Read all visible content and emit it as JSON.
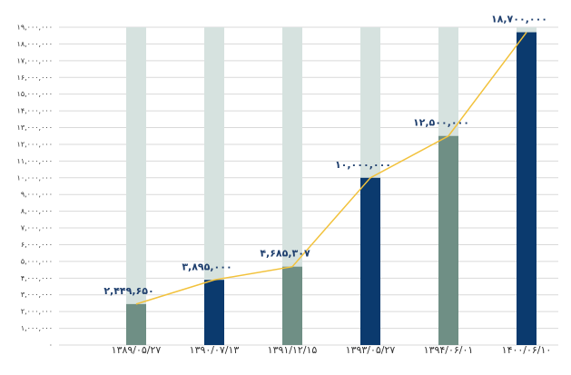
{
  "chart_data": {
    "type": "bar",
    "categories": [
      "۱۳۸۹/۰۵/۲۷",
      "۱۳۹۰/۰۷/۱۳",
      "۱۳۹۱/۱۲/۱۵",
      "۱۳۹۳/۰۵/۲۷",
      "۱۳۹۴/۰۶/۰۱",
      "۱۴۰۰/۰۶/۱۰"
    ],
    "values": [
      2449650,
      3895000,
      4685307,
      10000000,
      12500000,
      18700000
    ],
    "value_labels": [
      "۲,۴۴۹,۶۵۰",
      "۳,۸۹۵,۰۰۰",
      "۴,۶۸۵,۳۰۷",
      "۱۰,۰۰۰,۰۰۰",
      "۱۲,۵۰۰,۰۰۰",
      "۱۸,۷۰۰,۰۰۰"
    ],
    "colors": [
      "#6f8f85",
      "#0b3a6e",
      "#6f8f85",
      "#0b3a6e",
      "#6f8f85",
      "#0b3a6e"
    ],
    "background_color": "#d6e2df",
    "line_color": "#f2c23c",
    "ylim": [
      0,
      19000000
    ],
    "yticks": [
      {
        "value": 0,
        "label": "۰"
      },
      {
        "value": 1000000,
        "label": "۱,۰۰۰,۰۰۰"
      },
      {
        "value": 2000000,
        "label": "۲,۰۰۰,۰۰۰"
      },
      {
        "value": 3000000,
        "label": "۳,۰۰۰,۰۰۰"
      },
      {
        "value": 4000000,
        "label": "۴,۰۰۰,۰۰۰"
      },
      {
        "value": 5000000,
        "label": "۵,۰۰۰,۰۰۰"
      },
      {
        "value": 6000000,
        "label": "۶,۰۰۰,۰۰۰"
      },
      {
        "value": 7000000,
        "label": "۷,۰۰۰,۰۰۰"
      },
      {
        "value": 8000000,
        "label": "۸,۰۰۰,۰۰۰"
      },
      {
        "value": 9000000,
        "label": "۹,۰۰۰,۰۰۰"
      },
      {
        "value": 10000000,
        "label": "۱۰,۰۰۰,۰۰۰"
      },
      {
        "value": 11000000,
        "label": "۱۱,۰۰۰,۰۰۰"
      },
      {
        "value": 12000000,
        "label": "۱۲,۰۰۰,۰۰۰"
      },
      {
        "value": 13000000,
        "label": "۱۳,۰۰۰,۰۰۰"
      },
      {
        "value": 14000000,
        "label": "۱۴,۰۰۰,۰۰۰"
      },
      {
        "value": 15000000,
        "label": "۱۵,۰۰۰,۰۰۰"
      },
      {
        "value": 16000000,
        "label": "۱۶,۰۰۰,۰۰۰"
      },
      {
        "value": 17000000,
        "label": "۱۷,۰۰۰,۰۰۰"
      },
      {
        "value": 18000000,
        "label": "۱۸,۰۰۰,۰۰۰"
      },
      {
        "value": 19000000,
        "label": "۱۹,۰۰۰,۰۰۰"
      }
    ],
    "grid": true
  }
}
